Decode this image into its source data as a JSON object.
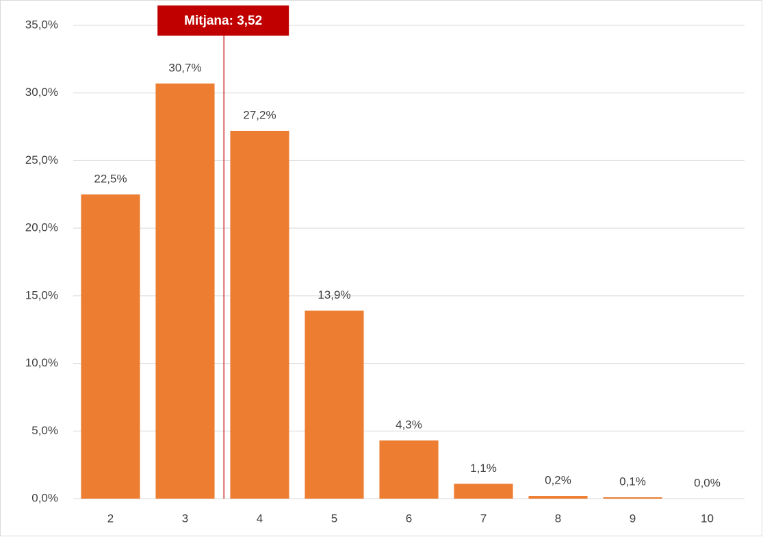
{
  "chart_data": {
    "type": "bar",
    "categories": [
      "2",
      "3",
      "4",
      "5",
      "6",
      "7",
      "8",
      "9",
      "10"
    ],
    "values": [
      22.5,
      30.7,
      27.2,
      13.9,
      4.3,
      1.1,
      0.2,
      0.1,
      0.0
    ],
    "value_labels": [
      "22,5%",
      "30,7%",
      "27,2%",
      "13,9%",
      "4,3%",
      "1,1%",
      "0,2%",
      "0,1%",
      "0,0%"
    ],
    "color": "#ed7d31",
    "ylim": [
      0,
      35
    ],
    "yticks": [
      {
        "value": 0,
        "label": "0,0%"
      },
      {
        "value": 5,
        "label": "5,0%"
      },
      {
        "value": 10,
        "label": "10,0%"
      },
      {
        "value": 15,
        "label": "15,0%"
      },
      {
        "value": 20,
        "label": "20,0%"
      },
      {
        "value": 25,
        "label": "25,0%"
      },
      {
        "value": 30,
        "label": "30,0%"
      },
      {
        "value": 35,
        "label": "35,0%"
      }
    ],
    "grid": true,
    "mean": {
      "value": 3.52,
      "label": "Mitjana: 3,52",
      "color": "#c00000"
    }
  }
}
